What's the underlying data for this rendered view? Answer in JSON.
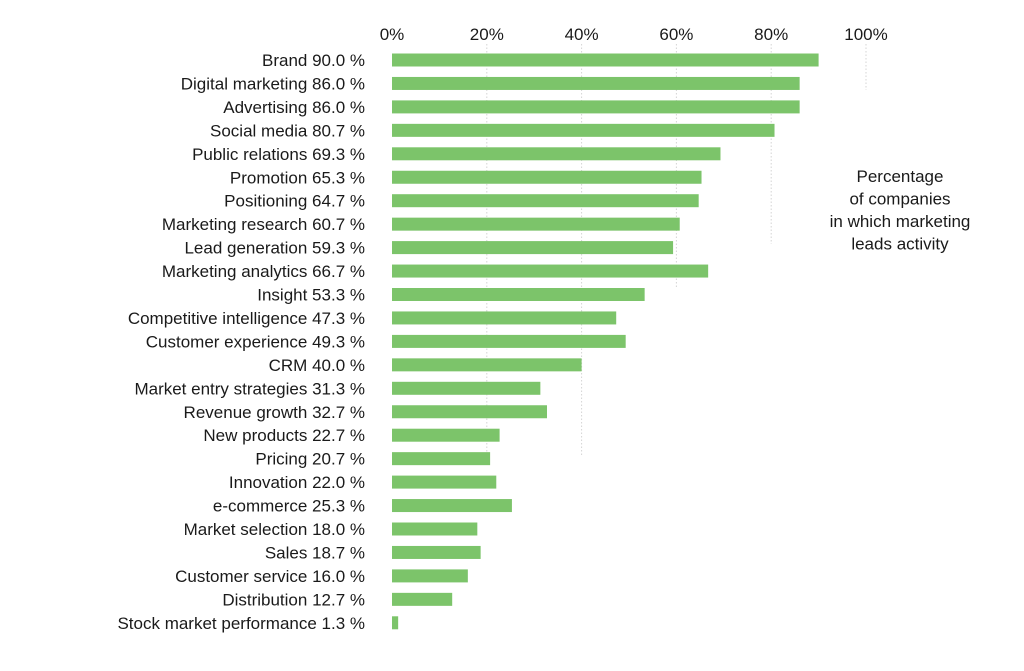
{
  "chart_data": {
    "type": "bar",
    "orientation": "horizontal",
    "categories": [
      "Brand",
      "Digital marketing",
      "Advertising",
      "Social media",
      "Public relations",
      "Promotion",
      "Positioning",
      "Marketing research",
      "Lead generation",
      "Marketing analytics",
      "Insight",
      "Competitive intelligence",
      "Customer experience",
      "CRM",
      "Market entry strategies",
      "Revenue growth",
      "New products",
      "Pricing",
      "Innovation",
      "e-commerce",
      "Market selection",
      "Sales",
      "Customer service",
      "Distribution",
      "Stock market performance"
    ],
    "labels": [
      "Brand 90.0 %",
      "Digital marketing 86.0 %",
      "Advertising 86.0 %",
      "Social media 80.7 %",
      "Public relations 69.3 %",
      "Promotion 65.3 %",
      "Positioning 64.7 %",
      "Marketing research 60.7 %",
      "Lead generation 59.3 %",
      "Marketing analytics 66.7 %",
      "Insight 53.3 %",
      "Competitive intelligence 47.3 %",
      "Customer experience 49.3 %",
      "CRM 40.0 %",
      "Market entry strategies 31.3 %",
      "Revenue growth 32.7 %",
      "New products 22.7 %",
      "Pricing 20.7 %",
      "Innovation 22.0 %",
      "e-commerce 25.3 %",
      "Market selection 18.0 %",
      "Sales 18.7 %",
      "Customer service 16.0 %",
      "Distribution 12.7 %",
      "Stock market performance 1.3 %"
    ],
    "values": [
      90.0,
      86.0,
      86.0,
      80.7,
      69.3,
      65.3,
      64.7,
      60.7,
      59.3,
      66.7,
      53.3,
      47.3,
      49.3,
      40.0,
      31.3,
      32.7,
      22.7,
      20.7,
      22.0,
      25.3,
      18.0,
      18.7,
      16.0,
      12.7,
      1.3
    ],
    "xlim": [
      0,
      100
    ],
    "xticks": [
      "0%",
      "20%",
      "40%",
      "60%",
      "80%",
      "100%"
    ],
    "xtick_values": [
      0,
      20,
      40,
      60,
      80,
      100
    ],
    "grid": "vertical dotted",
    "bar_color": "#7cc46a",
    "annotation": [
      "Percentage",
      "of companies",
      "in which marketing",
      "leads activity"
    ]
  }
}
